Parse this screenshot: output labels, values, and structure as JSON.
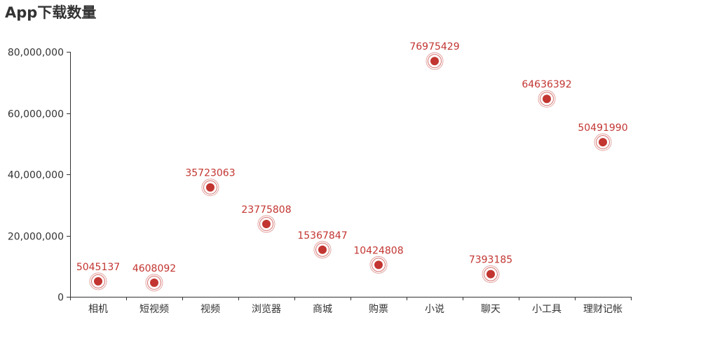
{
  "chart_data": {
    "type": "scatter",
    "title": "App下载数量",
    "categories": [
      "相机",
      "短视频",
      "视频",
      "浏览器",
      "商城",
      "购票",
      "小说",
      "聊天",
      "小工具",
      "理财记帐"
    ],
    "series": [
      {
        "name": "App下载数量",
        "values": [
          5045137,
          4608092,
          35723063,
          23775808,
          15367847,
          10424808,
          76975429,
          7393185,
          64636392,
          50491990
        ],
        "labels": [
          "5045137",
          "4608092",
          "35723063",
          "23775808",
          "15367847",
          "10424808",
          "76975429",
          "7393185",
          "64636392",
          "50491990"
        ]
      }
    ],
    "ylim": [
      0,
      80000000
    ],
    "yticks": [
      0,
      20000000,
      40000000,
      60000000,
      80000000
    ],
    "ytick_labels": [
      "0",
      "20,000,000",
      "40,000,000",
      "60,000,000",
      "80,000,000"
    ],
    "xlabel": "",
    "ylabel": "",
    "grid": false,
    "legend": false
  },
  "colors": {
    "point": "#c23531",
    "axis": "#333333",
    "text": "#333333"
  }
}
